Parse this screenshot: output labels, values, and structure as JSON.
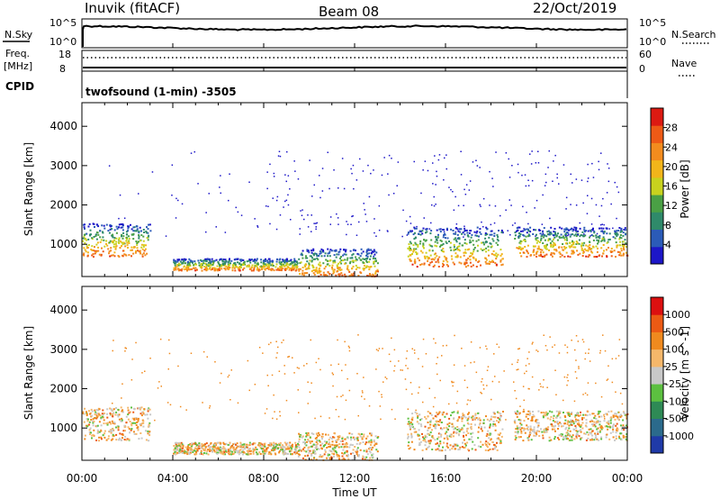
{
  "header": {
    "station": "Inuvik (fitACF)",
    "beam": "Beam 08",
    "date": "22/Oct/2019"
  },
  "top_panels": {
    "nsky_label": "N.Sky",
    "nsky_ticks": [
      "10^5",
      "10^0"
    ],
    "nsearch_label": "N.Search",
    "nsearch_ticks": [
      "10^5",
      "10^0"
    ],
    "freq_label": "Freq.",
    "freq_unit": "[MHz]",
    "freq_ticks": [
      "18",
      "8"
    ],
    "nave_label": "Nave",
    "nave_ticks": [
      "60",
      "0"
    ],
    "cpid_label": "CPID",
    "cpid_text": "twofsound (1-min) -3505"
  },
  "colors": {
    "power": [
      "#1c16c8",
      "#2b5bb8",
      "#2f8a6a",
      "#4aa045",
      "#c8d21e",
      "#f2b51a",
      "#f38c1e",
      "#ee5a16",
      "#dc1a12"
    ],
    "velocity": [
      "#1f3aa8",
      "#2b6a8c",
      "#2e8a55",
      "#5cc040",
      "#c8c8c8",
      "#f5b76a",
      "#f08a1e",
      "#ec5a14",
      "#dc1010"
    ]
  },
  "chart_data": [
    {
      "type": "heatmap",
      "name": "power",
      "ylabel": "Slant Range [km]",
      "xlabel": "Time UT",
      "x_ticks": [
        "00:00",
        "04:00",
        "08:00",
        "12:00",
        "16:00",
        "20:00",
        "00:00"
      ],
      "y_ticks": [
        1000,
        2000,
        3000,
        4000
      ],
      "ylim": [
        180,
        4600
      ],
      "xlim_hours": [
        0,
        24
      ],
      "colorbar": {
        "label": "Power [dB]",
        "ticks": [
          "28",
          "24",
          "20",
          "16",
          "12",
          "8",
          "4"
        ]
      },
      "regions": [
        {
          "t0": 0.0,
          "t1": 3.0,
          "r0": 700,
          "r1": 1550
        },
        {
          "t0": 4.0,
          "t1": 9.5,
          "r0": 350,
          "r1": 650
        },
        {
          "t0": 9.5,
          "t1": 13.0,
          "r0": 200,
          "r1": 900
        },
        {
          "t0": 14.3,
          "t1": 18.5,
          "r0": 450,
          "r1": 1450
        },
        {
          "t0": 19.0,
          "t1": 24.0,
          "r0": 700,
          "r1": 1450
        }
      ]
    },
    {
      "type": "heatmap",
      "name": "velocity",
      "ylabel": "Slant Range [km]",
      "xlabel": "Time UT",
      "x_ticks": [
        "00:00",
        "04:00",
        "08:00",
        "12:00",
        "16:00",
        "20:00",
        "00:00"
      ],
      "y_ticks": [
        1000,
        2000,
        3000,
        4000
      ],
      "ylim": [
        180,
        4600
      ],
      "xlim_hours": [
        0,
        24
      ],
      "colorbar": {
        "label": "Velocity [m s^-1]",
        "ticks": [
          "1000",
          "500",
          "100",
          "25",
          "-25",
          "-100",
          "-500",
          "-1000"
        ]
      },
      "regions": [
        {
          "t0": 0.0,
          "t1": 3.0,
          "r0": 700,
          "r1": 1550
        },
        {
          "t0": 4.0,
          "t1": 9.5,
          "r0": 350,
          "r1": 650
        },
        {
          "t0": 9.5,
          "t1": 13.0,
          "r0": 200,
          "r1": 900
        },
        {
          "t0": 14.3,
          "t1": 18.5,
          "r0": 450,
          "r1": 1450
        },
        {
          "t0": 19.0,
          "t1": 24.0,
          "r0": 700,
          "r1": 1450
        }
      ]
    }
  ]
}
